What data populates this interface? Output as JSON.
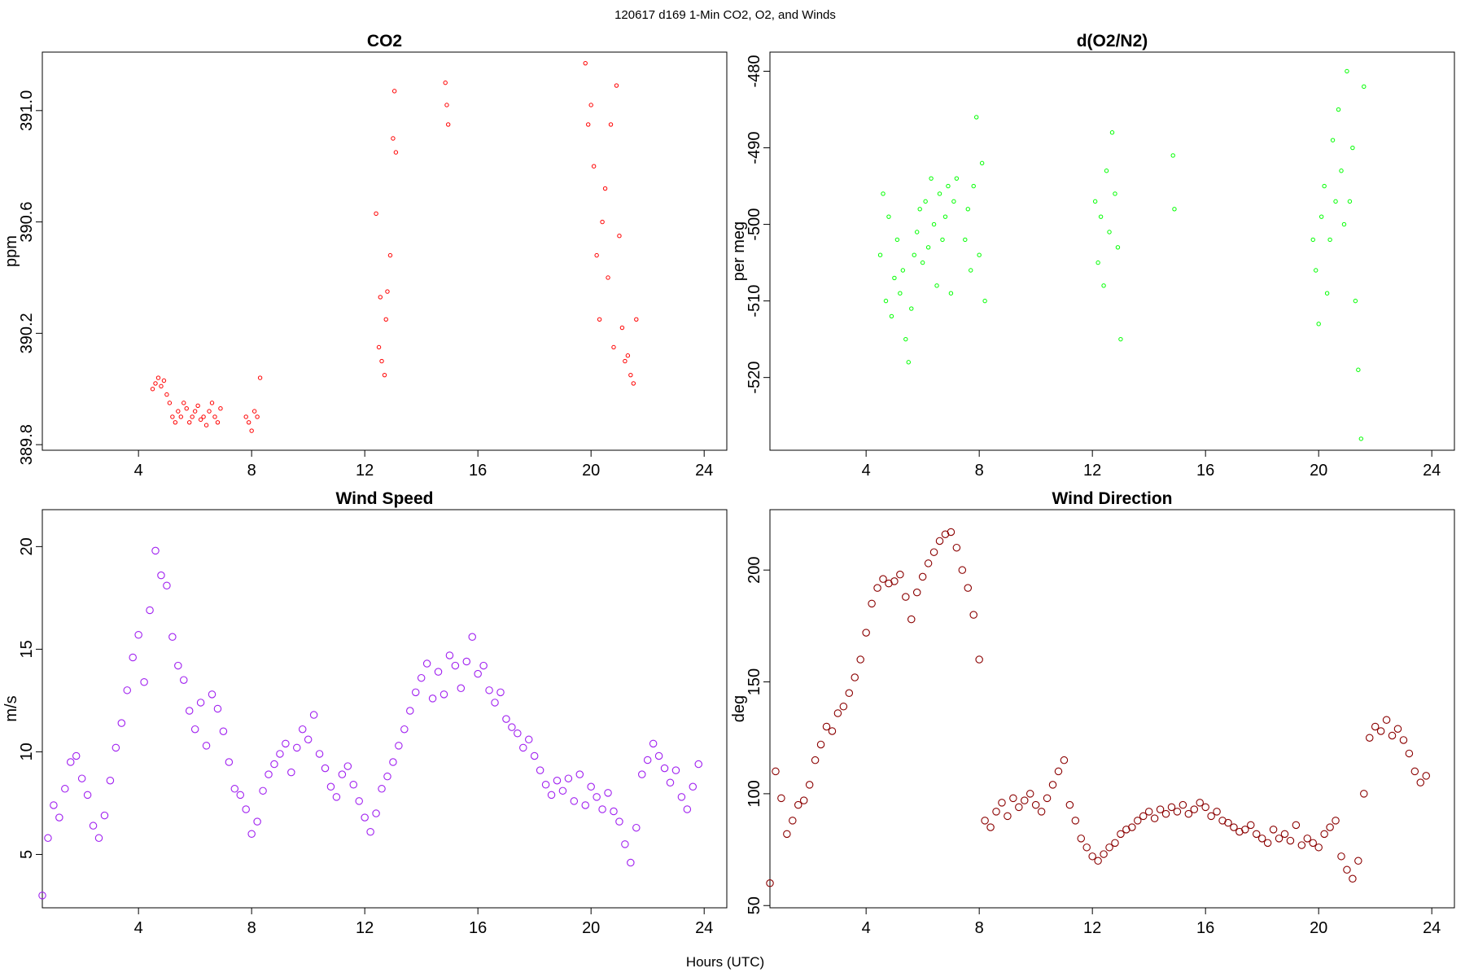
{
  "figure": {
    "title": "120617   d169   1-Min CO2, O2, and Winds",
    "xlabel": "Hours (UTC)"
  },
  "chart_data": [
    {
      "type": "scatter",
      "title": "CO2",
      "xlabel": "",
      "ylabel": "ppm",
      "xlim": [
        0.6,
        24.8
      ],
      "ylim": [
        389.78,
        391.21
      ],
      "xticks": [
        4,
        8,
        12,
        16,
        20,
        24
      ],
      "xtick_labels": [
        "4",
        "8",
        "12",
        "16",
        "20",
        "24"
      ],
      "yticks": [
        389.8,
        390.2,
        390.6,
        391.0
      ],
      "ytick_labels": [
        "389.8",
        "390.2",
        "390.6",
        "391.0"
      ],
      "grid": false,
      "color": "#ff0000",
      "series": [
        {
          "x": [
            4.5,
            4.6,
            4.7,
            4.8,
            4.9,
            5.0,
            5.1,
            5.2,
            5.3,
            5.4,
            5.5,
            5.6,
            5.7,
            5.8,
            5.9,
            6.0,
            6.1,
            6.2,
            6.3,
            6.4,
            6.5,
            6.6,
            6.7,
            6.8,
            6.9,
            7.8,
            7.9,
            8.0,
            8.1,
            8.2,
            8.3,
            12.4,
            12.5,
            12.55,
            12.6,
            12.7,
            12.75,
            12.8,
            12.9,
            13.0,
            13.05,
            13.1,
            14.85,
            14.9,
            14.95,
            19.8,
            19.9,
            20.0,
            20.1,
            20.2,
            20.3,
            20.4,
            20.5,
            20.6,
            20.7,
            20.8,
            20.9,
            21.0,
            21.1,
            21.2,
            21.3,
            21.4,
            21.5,
            21.6
          ],
          "y": [
            390.0,
            390.02,
            390.04,
            390.01,
            390.03,
            389.98,
            389.95,
            389.9,
            389.88,
            389.92,
            389.9,
            389.95,
            389.93,
            389.88,
            389.9,
            389.92,
            389.94,
            389.89,
            389.9,
            389.87,
            389.92,
            389.95,
            389.9,
            389.88,
            389.93,
            389.9,
            389.88,
            389.85,
            389.92,
            389.9,
            390.04,
            390.63,
            390.15,
            390.33,
            390.1,
            390.05,
            390.25,
            390.35,
            390.48,
            390.9,
            391.07,
            390.85,
            391.1,
            391.02,
            390.95,
            391.17,
            390.95,
            391.02,
            390.8,
            390.48,
            390.25,
            390.6,
            390.72,
            390.4,
            390.95,
            390.15,
            391.09,
            390.55,
            390.22,
            390.1,
            390.12,
            390.05,
            390.02,
            390.25
          ]
        }
      ]
    },
    {
      "type": "scatter",
      "title": "d(O2/N2)",
      "xlabel": "",
      "ylabel": "per meg",
      "xlim": [
        0.6,
        24.8
      ],
      "ylim": [
        -529.5,
        -477.5
      ],
      "xticks": [
        4,
        8,
        12,
        16,
        20,
        24
      ],
      "xtick_labels": [
        "4",
        "8",
        "12",
        "16",
        "20",
        "24"
      ],
      "yticks": [
        -520,
        -510,
        -500,
        -490,
        -480
      ],
      "ytick_labels": [
        "-520",
        "-510",
        "-500",
        "-490",
        "-480"
      ],
      "grid": false,
      "color": "#00ff00",
      "series": [
        {
          "x": [
            4.5,
            4.6,
            4.7,
            4.8,
            4.9,
            5.0,
            5.1,
            5.2,
            5.3,
            5.4,
            5.5,
            5.6,
            5.7,
            5.8,
            5.9,
            6.0,
            6.1,
            6.2,
            6.3,
            6.4,
            6.5,
            6.6,
            6.7,
            6.8,
            6.9,
            7.0,
            7.1,
            7.2,
            7.5,
            7.6,
            7.7,
            7.8,
            7.9,
            8.0,
            8.1,
            8.2,
            12.1,
            12.2,
            12.3,
            12.4,
            12.5,
            12.6,
            12.7,
            12.8,
            12.9,
            13.0,
            14.85,
            14.9,
            19.8,
            19.9,
            20.0,
            20.1,
            20.2,
            20.3,
            20.4,
            20.5,
            20.6,
            20.7,
            20.8,
            20.9,
            21.0,
            21.1,
            21.2,
            21.3,
            21.4,
            21.5,
            21.6
          ],
          "y": [
            -504,
            -496,
            -510,
            -499,
            -512,
            -507,
            -502,
            -509,
            -506,
            -515,
            -518,
            -511,
            -504,
            -501,
            -498,
            -505,
            -497,
            -503,
            -494,
            -500,
            -508,
            -496,
            -502,
            -499,
            -495,
            -509,
            -497,
            -494,
            -502,
            -498,
            -506,
            -495,
            -486,
            -504,
            -492,
            -510,
            -497,
            -505,
            -499,
            -508,
            -493,
            -501,
            -488,
            -496,
            -503,
            -515,
            -491,
            -498,
            -502,
            -506,
            -513,
            -499,
            -495,
            -509,
            -502,
            -489,
            -497,
            -485,
            -493,
            -500,
            -480,
            -497,
            -490,
            -510,
            -519,
            -528,
            -482
          ]
        }
      ]
    },
    {
      "type": "scatter",
      "title": "Wind Speed",
      "xlabel": "",
      "ylabel": "m/s",
      "xlim": [
        0.6,
        24.8
      ],
      "ylim": [
        2.4,
        21.8
      ],
      "xticks": [
        4,
        8,
        12,
        16,
        20,
        24
      ],
      "xtick_labels": [
        "4",
        "8",
        "12",
        "16",
        "20",
        "24"
      ],
      "yticks": [
        5,
        10,
        15,
        20
      ],
      "ytick_labels": [
        "5",
        "10",
        "15",
        "20"
      ],
      "grid": false,
      "color": "#a020f0",
      "series": [
        {
          "x": [
            0.6,
            0.8,
            1.0,
            1.2,
            1.4,
            1.6,
            1.8,
            2.0,
            2.2,
            2.4,
            2.6,
            2.8,
            3.0,
            3.2,
            3.4,
            3.6,
            3.8,
            4.0,
            4.2,
            4.4,
            4.6,
            4.8,
            5.0,
            5.2,
            5.4,
            5.6,
            5.8,
            6.0,
            6.2,
            6.4,
            6.6,
            6.8,
            7.0,
            7.2,
            7.4,
            7.6,
            7.8,
            8.0,
            8.2,
            8.4,
            8.6,
            8.8,
            9.0,
            9.2,
            9.4,
            9.6,
            9.8,
            10.0,
            10.2,
            10.4,
            10.6,
            10.8,
            11.0,
            11.2,
            11.4,
            11.6,
            11.8,
            12.0,
            12.2,
            12.4,
            12.6,
            12.8,
            13.0,
            13.2,
            13.4,
            13.6,
            13.8,
            14.0,
            14.2,
            14.4,
            14.6,
            14.8,
            15.0,
            15.2,
            15.4,
            15.6,
            15.8,
            16.0,
            16.2,
            16.4,
            16.6,
            16.8,
            17.0,
            17.2,
            17.4,
            17.6,
            17.8,
            18.0,
            18.2,
            18.4,
            18.6,
            18.8,
            19.0,
            19.2,
            19.4,
            19.6,
            19.8,
            20.0,
            20.2,
            20.4,
            20.6,
            20.8,
            21.0,
            21.2,
            21.4,
            21.6,
            21.8,
            22.0,
            22.2,
            22.4,
            22.6,
            22.8,
            23.0,
            23.2,
            23.4,
            23.6,
            23.8
          ],
          "y": [
            3.0,
            5.8,
            7.4,
            6.8,
            8.2,
            9.5,
            9.8,
            8.7,
            7.9,
            6.4,
            5.8,
            6.9,
            8.6,
            10.2,
            11.4,
            13.0,
            14.6,
            15.7,
            13.4,
            16.9,
            19.8,
            18.6,
            18.1,
            15.6,
            14.2,
            13.5,
            12.0,
            11.1,
            12.4,
            10.3,
            12.8,
            12.1,
            11.0,
            9.5,
            8.2,
            7.9,
            7.2,
            6.0,
            6.6,
            8.1,
            8.9,
            9.4,
            9.9,
            10.4,
            9.0,
            10.2,
            11.1,
            10.6,
            11.8,
            9.9,
            9.2,
            8.3,
            7.8,
            8.9,
            9.3,
            8.4,
            7.6,
            6.8,
            6.1,
            7.0,
            8.2,
            8.8,
            9.5,
            10.3,
            11.1,
            12.0,
            12.9,
            13.6,
            14.3,
            12.6,
            13.9,
            12.8,
            14.7,
            14.2,
            13.1,
            14.4,
            15.6,
            13.8,
            14.2,
            13.0,
            12.4,
            12.9,
            11.6,
            11.2,
            10.9,
            10.2,
            10.6,
            9.8,
            9.1,
            8.4,
            7.9,
            8.6,
            8.1,
            8.7,
            7.6,
            8.9,
            7.4,
            8.3,
            7.8,
            7.2,
            8.0,
            7.1,
            6.6,
            5.5,
            4.6,
            6.3,
            8.9,
            9.6,
            10.4,
            9.8,
            9.2,
            8.5,
            9.1,
            7.8,
            7.2,
            8.3,
            9.4
          ]
        }
      ]
    },
    {
      "type": "scatter",
      "title": "Wind Direction",
      "xlabel": "",
      "ylabel": "deg",
      "xlim": [
        0.6,
        24.8
      ],
      "ylim": [
        49,
        227
      ],
      "xticks": [
        4,
        8,
        12,
        16,
        20,
        24
      ],
      "xtick_labels": [
        "4",
        "8",
        "12",
        "16",
        "20",
        "24"
      ],
      "yticks": [
        50,
        100,
        150,
        200
      ],
      "ytick_labels": [
        "50",
        "100",
        "150",
        "200"
      ],
      "grid": false,
      "color": "#8b0000",
      "series": [
        {
          "x": [
            0.6,
            0.8,
            1.0,
            1.2,
            1.4,
            1.6,
            1.8,
            2.0,
            2.2,
            2.4,
            2.6,
            2.8,
            3.0,
            3.2,
            3.4,
            3.6,
            3.8,
            4.0,
            4.2,
            4.4,
            4.6,
            4.8,
            5.0,
            5.2,
            5.4,
            5.6,
            5.8,
            6.0,
            6.2,
            6.4,
            6.6,
            6.8,
            7.0,
            7.2,
            7.4,
            7.6,
            7.8,
            8.0,
            8.2,
            8.4,
            8.6,
            8.8,
            9.0,
            9.2,
            9.4,
            9.6,
            9.8,
            10.0,
            10.2,
            10.4,
            10.6,
            10.8,
            11.0,
            11.2,
            11.4,
            11.6,
            11.8,
            12.0,
            12.2,
            12.4,
            12.6,
            12.8,
            13.0,
            13.2,
            13.4,
            13.6,
            13.8,
            14.0,
            14.2,
            14.4,
            14.6,
            14.8,
            15.0,
            15.2,
            15.4,
            15.6,
            15.8,
            16.0,
            16.2,
            16.4,
            16.6,
            16.8,
            17.0,
            17.2,
            17.4,
            17.6,
            17.8,
            18.0,
            18.2,
            18.4,
            18.6,
            18.8,
            19.0,
            19.2,
            19.4,
            19.6,
            19.8,
            20.0,
            20.2,
            20.4,
            20.6,
            20.8,
            21.0,
            21.2,
            21.4,
            21.6,
            21.8,
            22.0,
            22.2,
            22.4,
            22.6,
            22.8,
            23.0,
            23.2,
            23.4,
            23.6,
            23.8
          ],
          "y": [
            60,
            110,
            98,
            82,
            88,
            95,
            97,
            104,
            115,
            122,
            130,
            128,
            136,
            139,
            145,
            152,
            160,
            172,
            185,
            192,
            196,
            194,
            195,
            198,
            188,
            178,
            190,
            197,
            203,
            208,
            213,
            216,
            217,
            210,
            200,
            192,
            180,
            160,
            88,
            85,
            92,
            96,
            90,
            98,
            94,
            97,
            100,
            95,
            92,
            98,
            104,
            110,
            115,
            95,
            88,
            80,
            76,
            72,
            70,
            73,
            76,
            78,
            82,
            84,
            85,
            88,
            90,
            92,
            89,
            93,
            91,
            94,
            92,
            95,
            91,
            93,
            96,
            94,
            90,
            92,
            88,
            87,
            85,
            83,
            84,
            86,
            82,
            80,
            78,
            84,
            80,
            82,
            79,
            86,
            77,
            80,
            78,
            76,
            82,
            85,
            88,
            72,
            66,
            62,
            70,
            100,
            125,
            130,
            128,
            133,
            126,
            129,
            124,
            118,
            110,
            105,
            108
          ]
        }
      ]
    }
  ]
}
